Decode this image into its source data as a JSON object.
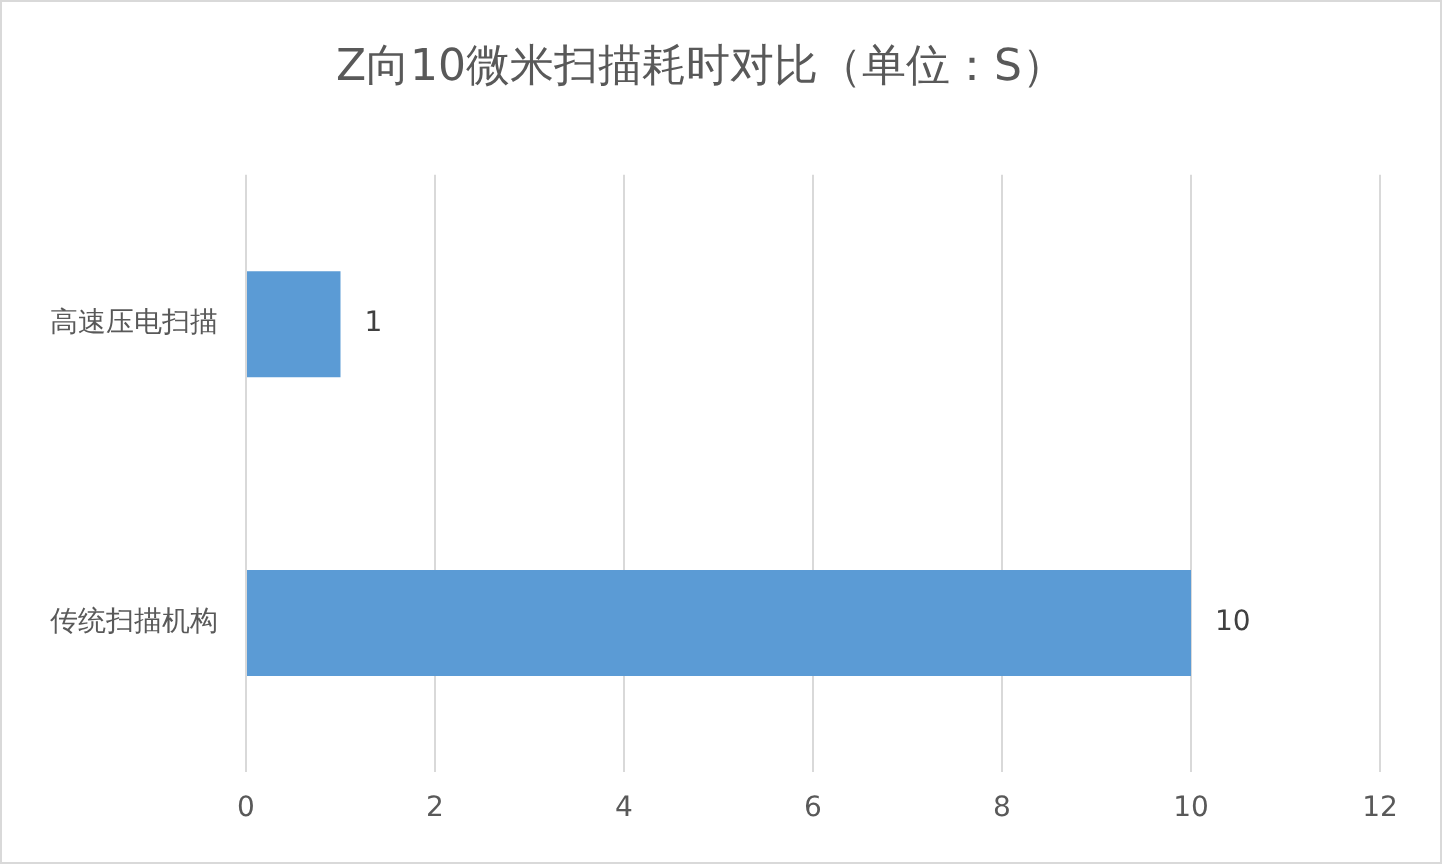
{
  "chart_data": {
    "type": "bar",
    "orientation": "horizontal",
    "title": "Z向10微米扫描耗时对比（单位：S）",
    "categories": [
      "高速压电扫描",
      "传统扫描机构"
    ],
    "values": [
      1,
      10
    ],
    "color": "#5b9bd5",
    "xlim": [
      0,
      12
    ],
    "xticks": [
      0,
      2,
      4,
      6,
      8,
      10,
      12
    ],
    "grid": "x",
    "data_labels": true
  }
}
